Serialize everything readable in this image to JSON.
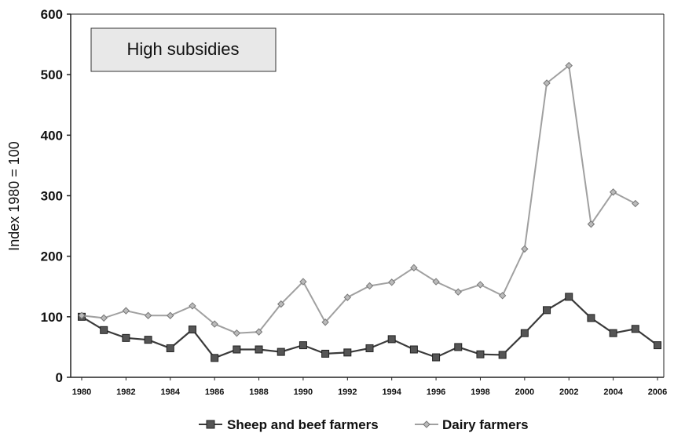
{
  "chart_data": {
    "type": "line",
    "title": "",
    "ylabel": "Index 1980 = 100",
    "xlabel": "",
    "annotation": "High subsidies",
    "ylim": [
      0,
      600
    ],
    "xlim": [
      1980,
      2006
    ],
    "yticks": [
      "0",
      "100",
      "200",
      "300",
      "400",
      "500",
      "600"
    ],
    "xticks": [
      "1980",
      "1982",
      "1984",
      "1986",
      "1988",
      "1990",
      "1992",
      "1994",
      "1996",
      "1998",
      "2000",
      "2002",
      "2004",
      "2006"
    ],
    "legend_position": "bottom",
    "grid": false,
    "series": [
      {
        "name": "Sheep and beef farmers",
        "color": "#3a3a3a",
        "marker": "square",
        "x": [
          1980,
          1981,
          1982,
          1983,
          1984,
          1985,
          1986,
          1987,
          1988,
          1989,
          1990,
          1991,
          1992,
          1993,
          1994,
          1995,
          1996,
          1997,
          1998,
          1999,
          2000,
          2001,
          2002,
          2003,
          2004,
          2005,
          2006
        ],
        "y": [
          100,
          78,
          65,
          62,
          48,
          79,
          32,
          46,
          46,
          42,
          53,
          39,
          41,
          48,
          63,
          46,
          33,
          50,
          38,
          37,
          73,
          111,
          133,
          98,
          73,
          80,
          53
        ]
      },
      {
        "name": "Dairy farmers",
        "color": "#a0a0a0",
        "marker": "diamond",
        "x": [
          1980,
          1981,
          1982,
          1983,
          1984,
          1985,
          1986,
          1987,
          1988,
          1989,
          1990,
          1991,
          1992,
          1993,
          1994,
          1995,
          1996,
          1997,
          1998,
          1999,
          2000,
          2001,
          2002,
          2003,
          2004,
          2005
        ],
        "y": [
          102,
          98,
          110,
          102,
          102,
          118,
          88,
          73,
          75,
          121,
          158,
          91,
          132,
          151,
          157,
          181,
          158,
          141,
          153,
          135,
          212,
          486,
          515,
          253,
          306,
          287
        ]
      }
    ]
  }
}
